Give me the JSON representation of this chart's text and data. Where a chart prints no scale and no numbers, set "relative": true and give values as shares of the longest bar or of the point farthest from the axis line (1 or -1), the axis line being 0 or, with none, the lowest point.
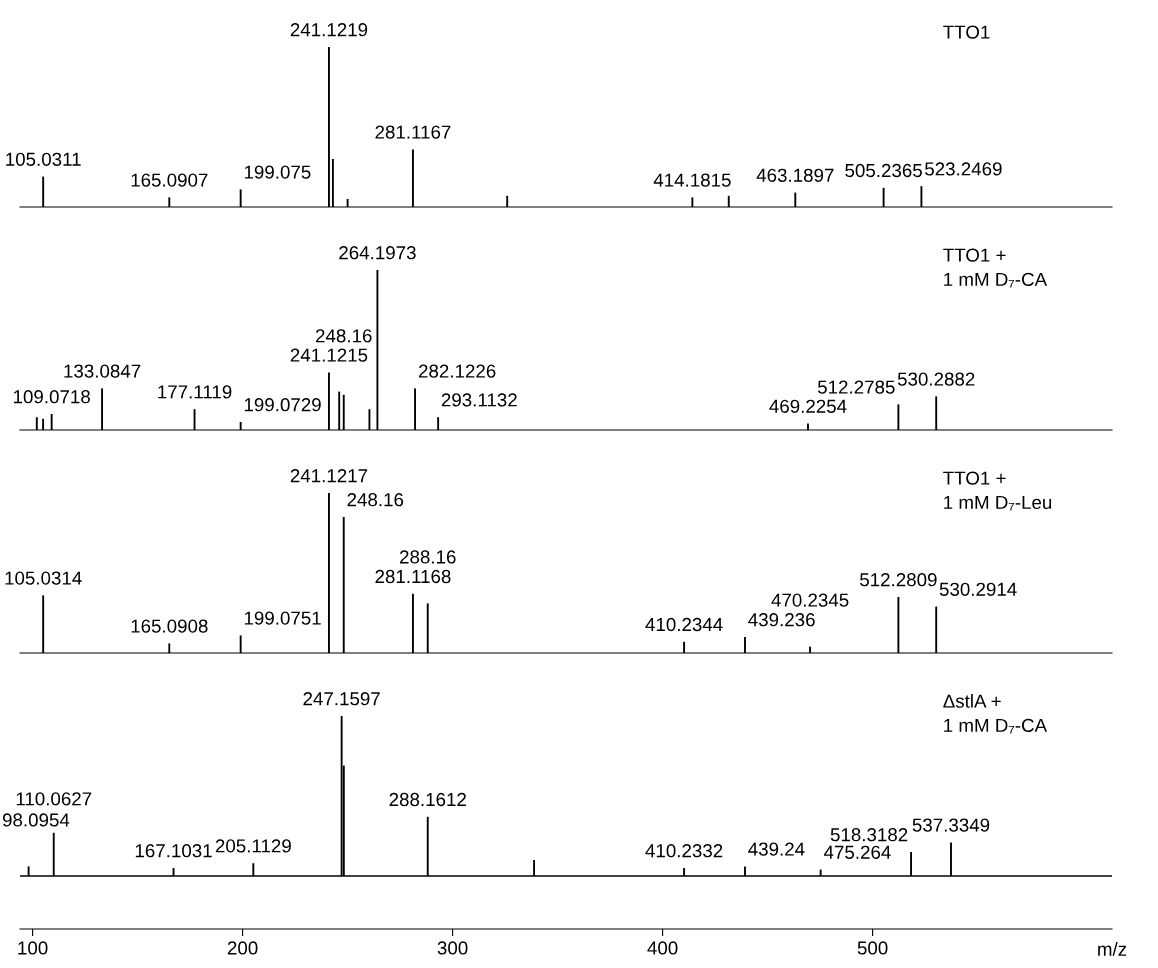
{
  "chart_data": [
    {
      "type": "bar",
      "title": "TTO1",
      "relative": true,
      "color": "#000000",
      "tick_labels": false,
      "xlim": [
        94,
        614
      ],
      "x": [
        105.0311,
        165.0907,
        199.075,
        241.1219,
        243.0,
        250.0,
        281.1167,
        326.0,
        414.1815,
        431.5,
        463.1897,
        505.2365,
        523.2469
      ],
      "values": [
        0.19,
        0.06,
        0.11,
        1.0,
        0.3,
        0.05,
        0.36,
        0.07,
        0.06,
        0.07,
        0.09,
        0.12,
        0.13
      ],
      "annotations": [
        {
          "text": "105.0311",
          "x": 105.0311,
          "y": 0.19
        },
        {
          "text": "165.0907",
          "x": 165.0907,
          "y": 0.06
        },
        {
          "text": "199.075",
          "x": 199.075,
          "y": 0.11
        },
        {
          "text": "241.1219",
          "x": 241.1219,
          "y": 1.0
        },
        {
          "text": "281.1167",
          "x": 281.1167,
          "y": 0.36
        },
        {
          "text": "414.1815",
          "x": 414.1815,
          "y": 0.06
        },
        {
          "text": "463.1897",
          "x": 463.1897,
          "y": 0.09
        },
        {
          "text": "505.2365",
          "x": 505.2365,
          "y": 0.12
        },
        {
          "text": "523.2469",
          "x": 523.2469,
          "y": 0.13
        }
      ]
    },
    {
      "type": "bar",
      "title": "TTO1 +\n1 mM D₇-CA",
      "relative": true,
      "color": "#000000",
      "tick_labels": false,
      "xlim": [
        94,
        614
      ],
      "x": [
        102.0,
        105.0,
        109.0718,
        133.0847,
        177.1119,
        199.0729,
        241.1215,
        246.0,
        248.16,
        260.4,
        264.1973,
        282.1226,
        293.1132,
        469.2254,
        512.2785,
        530.2882
      ],
      "values": [
        0.08,
        0.07,
        0.1,
        0.26,
        0.13,
        0.05,
        0.36,
        0.24,
        0.22,
        0.13,
        1.0,
        0.26,
        0.08,
        0.04,
        0.16,
        0.21
      ],
      "annotations": [
        {
          "text": "109.0718",
          "x": 109.0718,
          "y": 0.1
        },
        {
          "text": "133.0847",
          "x": 133.0847,
          "y": 0.26
        },
        {
          "text": "177.1119",
          "x": 177.1119,
          "y": 0.13
        },
        {
          "text": "199.0729",
          "x": 199.0729,
          "y": 0.05
        },
        {
          "text": "241.1215",
          "x": 241.1215,
          "y": 0.36
        },
        {
          "text": "248.16",
          "x": 248.16,
          "y": 0.22
        },
        {
          "text": "264.1973",
          "x": 264.1973,
          "y": 1.0
        },
        {
          "text": "282.1226",
          "x": 282.1226,
          "y": 0.26
        },
        {
          "text": "293.1132",
          "x": 293.1132,
          "y": 0.08
        },
        {
          "text": "469.2254",
          "x": 469.2254,
          "y": 0.04
        },
        {
          "text": "512.2785",
          "x": 512.2785,
          "y": 0.16
        },
        {
          "text": "530.2882",
          "x": 530.2882,
          "y": 0.21
        }
      ]
    },
    {
      "type": "bar",
      "title": "TTO1 +\n1 mM D₇-Leu",
      "relative": true,
      "color": "#000000",
      "tick_labels": false,
      "xlim": [
        94,
        614
      ],
      "x": [
        105.0314,
        165.0908,
        199.0751,
        241.1217,
        248.16,
        281.1168,
        288.16,
        410.2344,
        439.236,
        470.2345,
        512.2809,
        530.2914
      ],
      "values": [
        0.36,
        0.06,
        0.11,
        1.0,
        0.85,
        0.37,
        0.31,
        0.07,
        0.1,
        0.04,
        0.35,
        0.29
      ],
      "annotations": [
        {
          "text": "105.0314",
          "x": 105.0314,
          "y": 0.36
        },
        {
          "text": "165.0908",
          "x": 165.0908,
          "y": 0.06
        },
        {
          "text": "199.0751",
          "x": 199.0751,
          "y": 0.11
        },
        {
          "text": "241.1217",
          "x": 241.1217,
          "y": 1.0
        },
        {
          "text": "248.16",
          "x": 248.16,
          "y": 0.85
        },
        {
          "text": "281.1168",
          "x": 281.1168,
          "y": 0.37
        },
        {
          "text": "288.16",
          "x": 288.16,
          "y": 0.31
        },
        {
          "text": "410.2344",
          "x": 410.2344,
          "y": 0.07
        },
        {
          "text": "439.236",
          "x": 439.236,
          "y": 0.1
        },
        {
          "text": "470.2345",
          "x": 470.2345,
          "y": 0.04
        },
        {
          "text": "512.2809",
          "x": 512.2809,
          "y": 0.35
        },
        {
          "text": "530.2914",
          "x": 530.2914,
          "y": 0.29
        }
      ]
    },
    {
      "type": "bar",
      "title": "ΔstlA +\n1 mM D₇-CA",
      "relative": true,
      "color": "#000000",
      "tick_labels": "x",
      "xlim": [
        94,
        614
      ],
      "xlabel": "m/z",
      "xticks": [
        100,
        200,
        300,
        400,
        500
      ],
      "x": [
        98.0954,
        110.0627,
        167.1031,
        205.1129,
        247.1597,
        248.2,
        288.1612,
        338.8,
        410.2332,
        439.24,
        475.264,
        518.3182,
        537.3349
      ],
      "values": [
        0.06,
        0.27,
        0.05,
        0.08,
        1.0,
        0.69,
        0.37,
        0.1,
        0.05,
        0.06,
        0.04,
        0.15,
        0.21
      ],
      "annotations": [
        {
          "text": "98.0954",
          "x": 98.0954,
          "y": 0.06
        },
        {
          "text": "110.0627",
          "x": 110.0627,
          "y": 0.27
        },
        {
          "text": "167.1031",
          "x": 167.1031,
          "y": 0.05
        },
        {
          "text": "205.1129",
          "x": 205.1129,
          "y": 0.08
        },
        {
          "text": "247.1597",
          "x": 247.1597,
          "y": 1.0
        },
        {
          "text": "288.1612",
          "x": 288.1612,
          "y": 0.37
        },
        {
          "text": "410.2332",
          "x": 410.2332,
          "y": 0.05
        },
        {
          "text": "439.24",
          "x": 439.24,
          "y": 0.06
        },
        {
          "text": "475.264",
          "x": 475.264,
          "y": 0.04
        },
        {
          "text": "518.3182",
          "x": 518.3182,
          "y": 0.15
        },
        {
          "text": "537.3349",
          "x": 537.3349,
          "y": 0.21
        }
      ]
    }
  ]
}
